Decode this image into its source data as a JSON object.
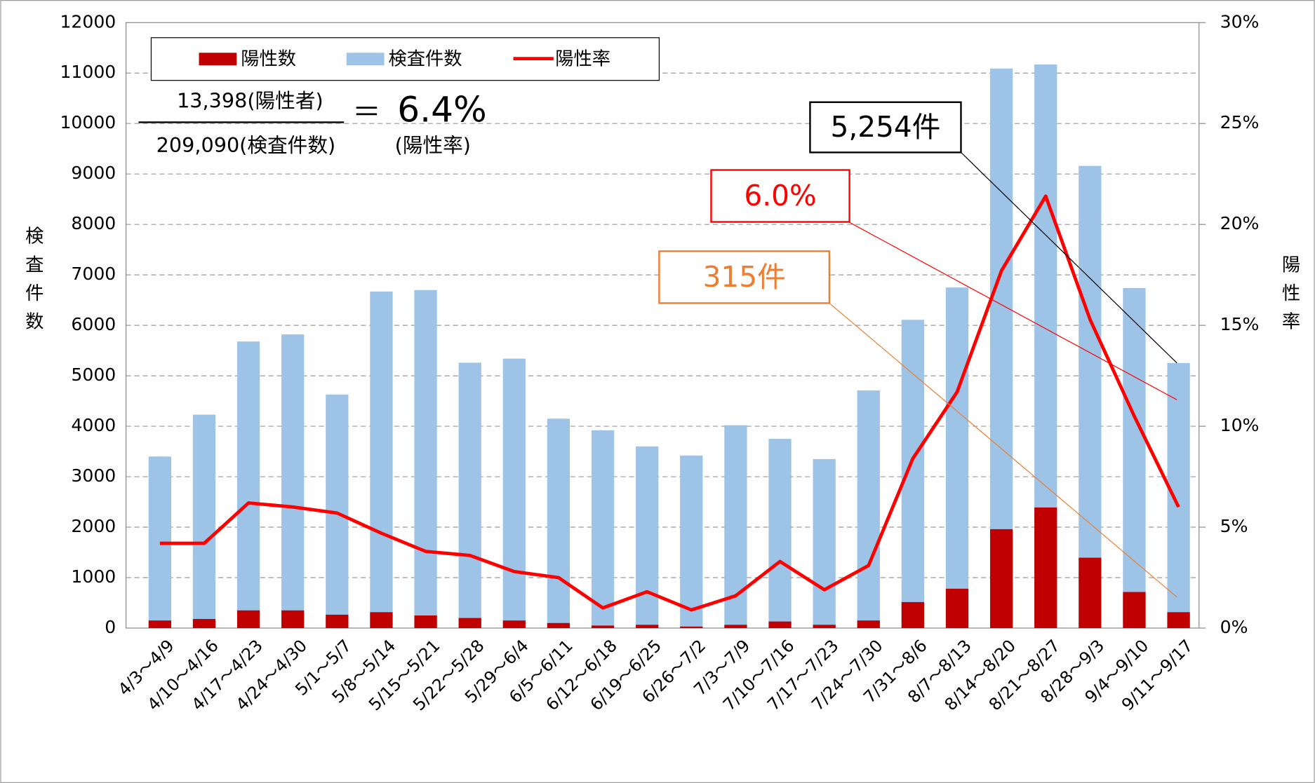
{
  "chart_data": {
    "type": "bar_line",
    "categories": [
      "4/3～4/9",
      "4/10～4/16",
      "4/17～4/23",
      "4/24～4/30",
      "5/1～5/7",
      "5/8～5/14",
      "5/15～5/21",
      "5/22～5/28",
      "5/29～6/4",
      "6/5～6/11",
      "6/12～6/18",
      "6/19～6/25",
      "6/26～7/2",
      "7/3～7/9",
      "7/10～7/16",
      "7/17～7/23",
      "7/24～7/30",
      "7/31～8/6",
      "8/7～8/13",
      "8/14～8/20",
      "8/21～8/27",
      "8/28～9/3",
      "9/4～9/10",
      "9/11～9/17"
    ],
    "series": [
      {
        "name": "陽性数",
        "color": "#c00000",
        "kind": "bar",
        "values": [
          150,
          180,
          350,
          350,
          265,
          315,
          250,
          200,
          150,
          100,
          50,
          65,
          30,
          65,
          130,
          65,
          150,
          515,
          780,
          1960,
          2390,
          1395,
          715,
          315
        ]
      },
      {
        "name": "検査件数",
        "color": "#9dc3e6",
        "kind": "bar",
        "values": [
          3400,
          4230,
          5680,
          5820,
          4630,
          6670,
          6700,
          5260,
          5340,
          4150,
          3920,
          3600,
          3420,
          4020,
          3750,
          3350,
          4710,
          6110,
          6750,
          11090,
          11170,
          9160,
          6740,
          5254
        ]
      },
      {
        "name": "陽性率",
        "color": "#ff0000",
        "kind": "line",
        "axis": "y2",
        "values": [
          4.2,
          4.2,
          6.2,
          6.0,
          5.7,
          4.7,
          3.8,
          3.6,
          2.8,
          2.5,
          1.0,
          1.8,
          0.9,
          1.6,
          3.3,
          1.9,
          3.1,
          8.4,
          11.7,
          17.7,
          21.4,
          15.3,
          10.5,
          6.0
        ]
      }
    ],
    "ylabel": "検査件数",
    "y2label": "陽性率",
    "ylim": [
      0,
      12000
    ],
    "yticks": [
      0,
      1000,
      2000,
      3000,
      4000,
      5000,
      6000,
      7000,
      8000,
      9000,
      10000,
      11000,
      12000
    ],
    "y2lim": [
      0,
      30
    ],
    "y2ticks": [
      {
        "value": 0,
        "label": "0%"
      },
      {
        "value": 5,
        "label": "5%"
      },
      {
        "value": 10,
        "label": "10%"
      },
      {
        "value": 15,
        "label": "15%"
      },
      {
        "value": 20,
        "label": "20%"
      },
      {
        "value": 25,
        "label": "25%"
      },
      {
        "value": 30,
        "label": "30%"
      }
    ],
    "grid": true,
    "legend": "top-left",
    "formula": {
      "numerator": "13,398(陽性者)",
      "denominator": "209,090(検査件数)",
      "equals": "＝",
      "result": "6.4%",
      "result_label": "(陽性率)"
    },
    "annotations": [
      {
        "text": "5,254件",
        "color": "#000000"
      },
      {
        "text": "6.0%",
        "color": "#ff0000"
      },
      {
        "text": "315件",
        "color": "#ed7d31"
      }
    ]
  }
}
